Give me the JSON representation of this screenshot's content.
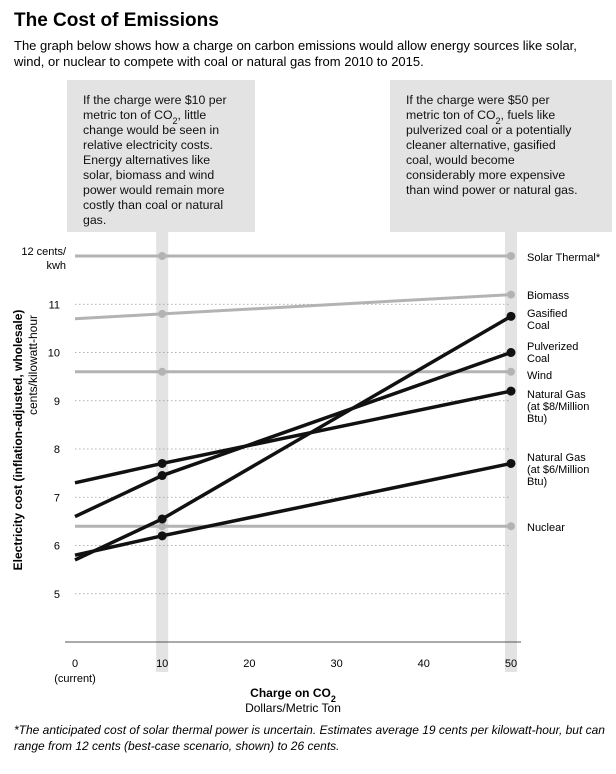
{
  "chart_data": {
    "type": "line",
    "title": "The Cost of Emissions",
    "subtitle": "The graph below shows how a charge on carbon emissions would allow energy sources like solar, wind, or nuclear to compete with coal or natural gas from 2010 to 2015.",
    "xlabel": "Charge on CO",
    "xlabel_sub": "2",
    "xlabel_units": "Dollars/Metric Ton",
    "ylabel": "Electricity cost (inflation-adjusted, wholesale)",
    "ylabel_units": "cents/kilowatt-hour",
    "xlim": [
      0,
      50
    ],
    "ylim": [
      4,
      12
    ],
    "x_ticks": [
      {
        "value": 0,
        "label": "0",
        "sublabel": "(current)"
      },
      {
        "value": 10,
        "label": "10"
      },
      {
        "value": 20,
        "label": "20"
      },
      {
        "value": 30,
        "label": "30"
      },
      {
        "value": 40,
        "label": "40"
      },
      {
        "value": 50,
        "label": "50"
      }
    ],
    "y_ticks": [
      {
        "value": 5,
        "label": "5"
      },
      {
        "value": 6,
        "label": "6"
      },
      {
        "value": 7,
        "label": "7"
      },
      {
        "value": 8,
        "label": "8"
      },
      {
        "value": 9,
        "label": "9"
      },
      {
        "value": 10,
        "label": "10"
      },
      {
        "value": 11,
        "label": "11"
      },
      {
        "value": 12,
        "label": "12 cents/",
        "label2": "kwh"
      }
    ],
    "highlight_x": [
      10,
      50
    ],
    "grid": "horizontal-dotted",
    "series": [
      {
        "name": "Solar Thermal*",
        "label_lines": [
          "Solar Thermal*"
        ],
        "color": "#b3b3b3",
        "x": [
          0,
          10,
          50
        ],
        "y": [
          12,
          12,
          12
        ]
      },
      {
        "name": "Biomass",
        "label_lines": [
          "Biomass"
        ],
        "color": "#b3b3b3",
        "x": [
          0,
          10,
          50
        ],
        "y": [
          10.7,
          10.8,
          11.2
        ]
      },
      {
        "name": "Gasified Coal",
        "label_lines": [
          "Gasified",
          "Coal"
        ],
        "color": "#111111",
        "x": [
          0,
          10,
          50
        ],
        "y": [
          5.7,
          6.55,
          10.75
        ]
      },
      {
        "name": "Pulverized Coal",
        "label_lines": [
          "Pulverized",
          "Coal"
        ],
        "color": "#111111",
        "x": [
          0,
          10,
          50
        ],
        "y": [
          6.6,
          7.45,
          10.0
        ]
      },
      {
        "name": "Wind",
        "label_lines": [
          "Wind"
        ],
        "color": "#b3b3b3",
        "x": [
          0,
          10,
          50
        ],
        "y": [
          9.6,
          9.6,
          9.6
        ]
      },
      {
        "name": "Natural Gas (at $8/Million Btu)",
        "label_lines": [
          "Natural Gas",
          "(at $8/Million",
          "Btu)"
        ],
        "color": "#111111",
        "x": [
          0,
          10,
          50
        ],
        "y": [
          7.3,
          7.7,
          9.2
        ]
      },
      {
        "name": "Natural Gas (at $6/Million Btu)",
        "label_lines": [
          "Natural Gas",
          "(at $6/Million",
          "Btu)"
        ],
        "color": "#111111",
        "x": [
          0,
          10,
          50
        ],
        "y": [
          5.8,
          6.2,
          7.7
        ]
      },
      {
        "name": "Nuclear",
        "label_lines": [
          "Nuclear"
        ],
        "color": "#b3b3b3",
        "x": [
          0,
          10,
          50
        ],
        "y": [
          6.4,
          6.4,
          6.4
        ]
      }
    ],
    "annotations": [
      {
        "at_x": 10,
        "lines": [
          "If the charge were $10 per",
          "metric ton of CO{2}, little",
          "change would be seen in",
          "relative electricity costs.",
          "Energy alternatives like",
          "solar, biomass and wind",
          "power would remain more",
          "costly than coal or natural",
          "gas."
        ]
      },
      {
        "at_x": 50,
        "lines": [
          "If the charge were $50 per",
          "metric ton of CO{2}, fuels like",
          "pulverized coal or a potentially",
          "cleaner alternative, gasified",
          "coal, would become",
          "considerably more expensive",
          "than wind power or natural gas."
        ]
      }
    ],
    "footnote": "*The anticipated cost of solar thermal power is uncertain.  Estimates average 19 cents per kilowatt-hour, but can range from 12 cents (best-case scenario, shown) to 26 cents."
  }
}
